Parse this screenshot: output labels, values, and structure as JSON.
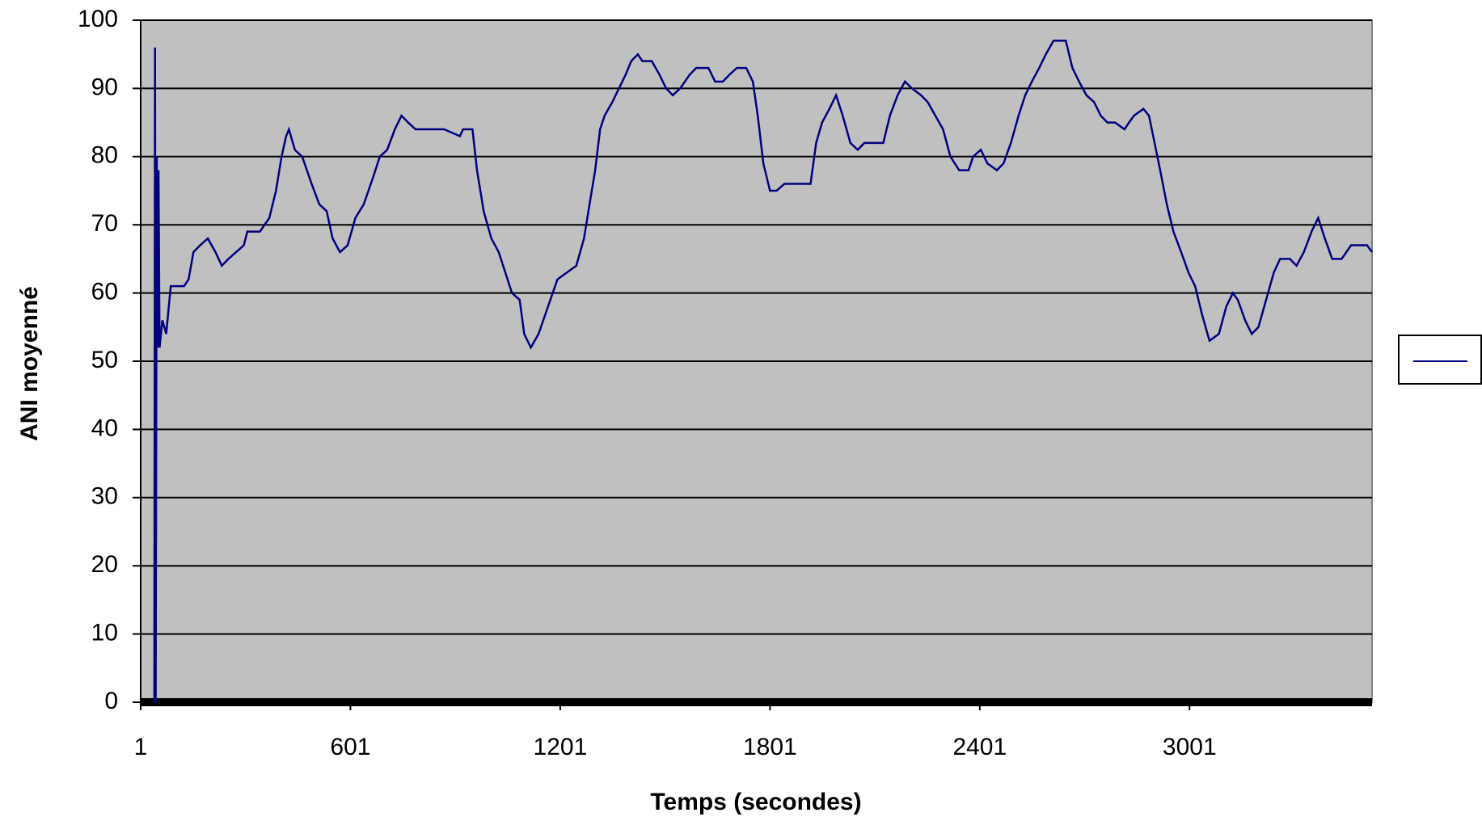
{
  "chart_data": {
    "type": "line",
    "x_label": "Temps (secondes)",
    "y_label": "ANI moyenné",
    "x": [
      40,
      42,
      44,
      47,
      50,
      52,
      55,
      63,
      74,
      87,
      125,
      138,
      152,
      171,
      193,
      215,
      233,
      252,
      274,
      296,
      306,
      342,
      369,
      388,
      404,
      417,
      425,
      442,
      463,
      490,
      512,
      533,
      550,
      571,
      593,
      615,
      639,
      666,
      685,
      706,
      728,
      747,
      766,
      787,
      869,
      914,
      923,
      950,
      963,
      982,
      1004,
      1025,
      1044,
      1063,
      1085,
      1098,
      1117,
      1139,
      1166,
      1193,
      1220,
      1247,
      1269,
      1288,
      1301,
      1315,
      1328,
      1350,
      1369,
      1388,
      1404,
      1423,
      1436,
      1463,
      1485,
      1504,
      1523,
      1544,
      1571,
      1590,
      1625,
      1644,
      1666,
      1685,
      1706,
      1733,
      1752,
      1766,
      1782,
      1801,
      1820,
      1842,
      1896,
      1917,
      1933,
      1950,
      1971,
      1990,
      2009,
      2031,
      2052,
      2071,
      2125,
      2144,
      2166,
      2187,
      2207,
      2233,
      2252,
      2274,
      2296,
      2317,
      2342,
      2369,
      2382,
      2404,
      2423,
      2450,
      2469,
      2490,
      2512,
      2531,
      2550,
      2571,
      2590,
      2612,
      2647,
      2666,
      2685,
      2706,
      2728,
      2747,
      2766,
      2788,
      2815,
      2828,
      2842,
      2869,
      2885,
      2901,
      2917,
      2936,
      2955,
      2977,
      2998,
      3017,
      3036,
      3058,
      3085,
      3106,
      3125,
      3139,
      3160,
      3179,
      3198,
      3220,
      3242,
      3260,
      3288,
      3307,
      3328,
      3350,
      3369,
      3388,
      3409,
      3436,
      3463,
      3509,
      3523
    ],
    "series": [
      {
        "color": "#000080",
        "values": [
          0,
          96,
          0,
          80,
          52,
          78,
          52,
          56,
          54,
          61,
          61,
          62,
          66,
          67,
          68,
          66,
          64,
          65,
          66,
          67,
          69,
          69,
          71,
          75,
          80,
          83,
          84,
          81,
          80,
          76,
          73,
          72,
          68,
          66,
          67,
          71,
          73,
          77,
          80,
          81,
          84,
          86,
          85,
          84,
          84,
          83,
          84,
          84,
          78,
          72,
          68,
          66,
          63,
          60,
          59,
          54,
          52,
          54,
          58,
          62,
          63,
          64,
          68,
          74,
          78,
          84,
          86,
          88,
          90,
          92,
          94,
          95,
          94,
          94,
          92,
          90,
          89,
          90,
          92,
          93,
          93,
          91,
          91,
          92,
          93,
          93,
          91,
          86,
          79,
          75,
          75,
          76,
          76,
          76,
          82,
          85,
          87,
          89,
          86,
          82,
          81,
          82,
          82,
          86,
          89,
          91,
          90,
          89,
          88,
          86,
          84,
          80,
          78,
          78,
          80,
          81,
          79,
          78,
          79,
          82,
          86,
          89,
          91,
          93,
          95,
          97,
          97,
          93,
          91,
          89,
          88,
          86,
          85,
          85,
          84,
          85,
          86,
          87,
          86,
          82,
          78,
          73,
          69,
          66,
          63,
          61,
          57,
          53,
          54,
          58,
          60,
          59,
          56,
          54,
          55,
          59,
          63,
          65,
          65,
          64,
          66,
          69,
          71,
          68,
          65,
          65,
          67,
          67,
          66
        ]
      }
    ],
    "xlim": [
      1,
      3523
    ],
    "xticks": [
      1,
      601,
      1201,
      1801,
      2401,
      3001
    ],
    "ylim": [
      0,
      100
    ],
    "yticks": [
      0,
      10,
      20,
      30,
      40,
      50,
      60,
      70,
      80,
      90,
      100
    ],
    "grid": true,
    "legend": "right"
  }
}
